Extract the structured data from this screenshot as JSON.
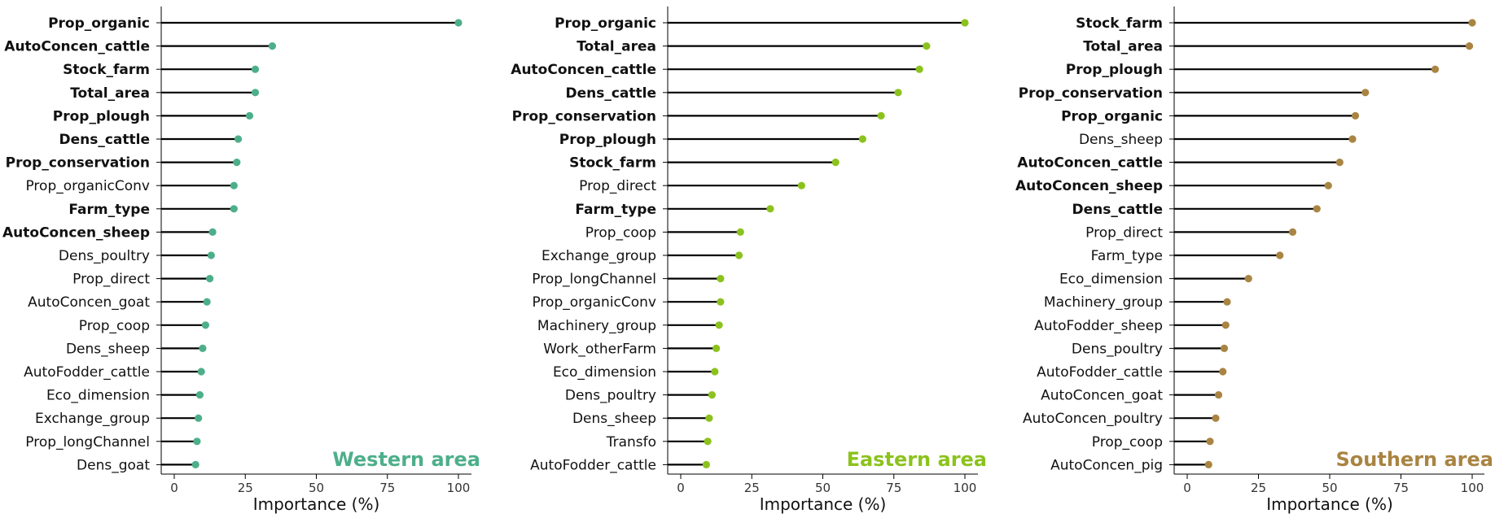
{
  "xlabel": "Importance (%)",
  "chart_data": [
    {
      "type": "lollipop",
      "title": "Western area",
      "color": "#4daf8a",
      "xlabel": "Importance (%)",
      "xlim": [
        0,
        100
      ],
      "xticks": [
        0,
        25,
        50,
        75,
        100
      ],
      "categories": [
        "Prop_organic",
        "AutoConcen_cattle",
        "Stock_farm",
        "Total_area",
        "Prop_plough",
        "Dens_cattle",
        "Prop_conservation",
        "Prop_organicConv",
        "Farm_type",
        "AutoConcen_sheep",
        "Dens_poultry",
        "Prop_direct",
        "AutoConcen_goat",
        "Prop_coop",
        "Dens_sheep",
        "AutoFodder_cattle",
        "Eco_dimension",
        "Exchange_group",
        "Prop_longChannel",
        "Dens_goat"
      ],
      "values": [
        100,
        34.5,
        28.5,
        28.5,
        26.5,
        22.5,
        22,
        21,
        21,
        13.5,
        13,
        12.5,
        11.5,
        11,
        10,
        9.5,
        9,
        8.5,
        8,
        7.5
      ],
      "bold": [
        true,
        true,
        true,
        true,
        true,
        true,
        true,
        false,
        true,
        true,
        false,
        false,
        false,
        false,
        false,
        false,
        false,
        false,
        false,
        false
      ]
    },
    {
      "type": "lollipop",
      "title": "Eastern area",
      "color": "#8cc21e",
      "xlabel": "Importance (%)",
      "xlim": [
        0,
        100
      ],
      "xticks": [
        0,
        25,
        50,
        75,
        100
      ],
      "categories": [
        "Prop_organic",
        "Total_area",
        "AutoConcen_cattle",
        "Dens_cattle",
        "Prop_conservation",
        "Prop_plough",
        "Stock_farm",
        "Prop_direct",
        "Farm_type",
        "Prop_coop",
        "Exchange_group",
        "Prop_longChannel",
        "Prop_organicConv",
        "Machinery_group",
        "Work_otherFarm",
        "Eco_dimension",
        "Dens_poultry",
        "Dens_sheep",
        "Transfo",
        "AutoFodder_cattle"
      ],
      "values": [
        100,
        86.5,
        84,
        76.5,
        70.5,
        64,
        54.5,
        42.5,
        31.5,
        21,
        20.5,
        14,
        14,
        13.5,
        12.5,
        12,
        11,
        10,
        9.5,
        9
      ],
      "bold": [
        true,
        true,
        true,
        true,
        true,
        true,
        true,
        false,
        true,
        false,
        false,
        false,
        false,
        false,
        false,
        false,
        false,
        false,
        false,
        false
      ]
    },
    {
      "type": "lollipop",
      "title": "Southern area",
      "color": "#a98442",
      "xlabel": "Importance (%)",
      "xlim": [
        0,
        100
      ],
      "xticks": [
        0,
        25,
        50,
        75,
        100
      ],
      "categories": [
        "Stock_farm",
        "Total_area",
        "Prop_plough",
        "Prop_conservation",
        "Prop_organic",
        "Dens_sheep",
        "AutoConcen_cattle",
        "AutoConcen_sheep",
        "Dens_cattle",
        "Prop_direct",
        "Farm_type",
        "Eco_dimension",
        "Machinery_group",
        "AutoFodder_sheep",
        "Dens_poultry",
        "AutoFodder_cattle",
        "AutoConcen_goat",
        "AutoConcen_poultry",
        "Prop_coop",
        "AutoConcen_pig"
      ],
      "values": [
        100,
        99,
        87,
        62.5,
        59,
        58,
        53.5,
        49.5,
        45.5,
        37,
        32.5,
        21.5,
        14,
        13.5,
        13,
        12.5,
        11,
        10,
        8,
        7.5
      ],
      "bold": [
        true,
        true,
        true,
        true,
        true,
        false,
        true,
        true,
        true,
        false,
        false,
        false,
        false,
        false,
        false,
        false,
        false,
        false,
        false,
        false
      ]
    }
  ]
}
